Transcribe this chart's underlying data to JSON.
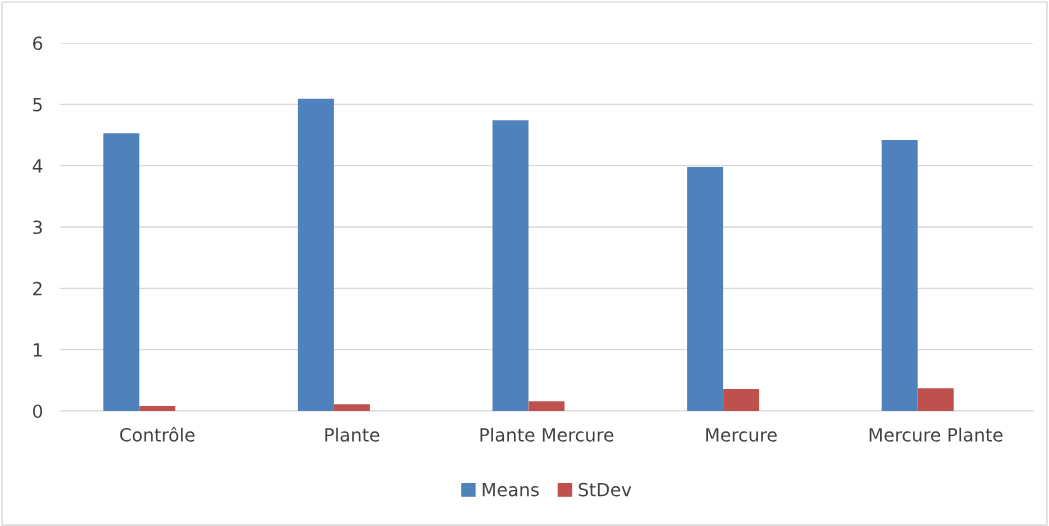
{
  "chart_data": {
    "type": "bar",
    "categories": [
      "Contrôle",
      "Plante",
      "Plante Mercure",
      "Mercure",
      "Mercure Plante"
    ],
    "series": [
      {
        "name": "Means",
        "color": "#4f81bd",
        "values": [
          4.53,
          5.09,
          4.74,
          3.98,
          4.42
        ]
      },
      {
        "name": "StDev",
        "color": "#c0504d",
        "values": [
          0.08,
          0.11,
          0.16,
          0.36,
          0.37
        ]
      }
    ],
    "ylim": [
      0,
      6
    ],
    "yticks": [
      0,
      1,
      2,
      3,
      4,
      5,
      6
    ],
    "grid": "y",
    "legend": "bottom"
  }
}
